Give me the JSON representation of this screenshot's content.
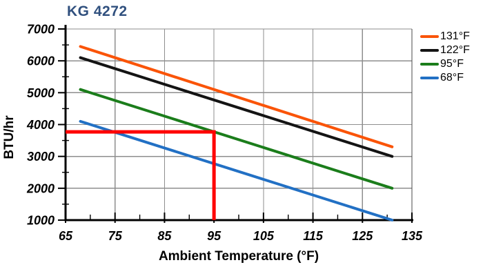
{
  "colors": {
    "title": "#30507E",
    "grid": "#8E8E8E",
    "frame_right": "#4A4A4A",
    "axis": "#000000",
    "tick_label": "#000000"
  },
  "chart_data": {
    "type": "line",
    "title": "KG 4272",
    "xlabel": "Ambient Temperature (°F)",
    "ylabel": "BTU/hr",
    "xlim": [
      65,
      135
    ],
    "ylim": [
      1000,
      7000
    ],
    "x_major_ticks": [
      65,
      75,
      85,
      95,
      105,
      115,
      125,
      135
    ],
    "x_minor_ticks": [
      70,
      80,
      90,
      100,
      110,
      120,
      130
    ],
    "y_major_ticks": [
      1000,
      2000,
      3000,
      4000,
      5000,
      6000,
      7000
    ],
    "y_minor_ticks": [
      1500,
      2500,
      3500,
      4500,
      5500,
      6500
    ],
    "grid": "major",
    "legend_position": "outside-top-right",
    "series": [
      {
        "name": "131°F",
        "color": "#FA5408",
        "points": [
          [
            68,
            6450
          ],
          [
            131,
            3300
          ]
        ]
      },
      {
        "name": "122°F",
        "color": "#141414",
        "points": [
          [
            68,
            6100
          ],
          [
            131,
            3000
          ]
        ]
      },
      {
        "name": "95°F",
        "color": "#1B7D1B",
        "points": [
          [
            68,
            5100
          ],
          [
            131,
            2000
          ]
        ]
      },
      {
        "name": "68°F",
        "color": "#2270C4",
        "points": [
          [
            68,
            4100
          ],
          [
            131,
            1000
          ]
        ]
      }
    ],
    "annotation_line": {
      "color": "#FF0000",
      "points": [
        [
          65,
          3770
        ],
        [
          95,
          3770
        ],
        [
          95,
          1000
        ]
      ]
    }
  }
}
